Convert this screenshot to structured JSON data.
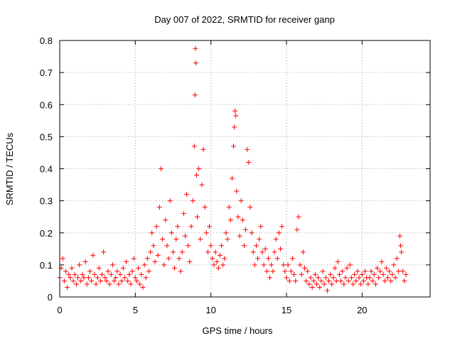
{
  "chart_data": {
    "type": "scatter",
    "title": "Day 007 of 2022, SRMTID for receiver ganp",
    "xlabel": "GPS time / hours",
    "ylabel": "SRMTID / TECUs",
    "xlim": [
      0,
      24.5
    ],
    "ylim": [
      0,
      0.8
    ],
    "x_ticks": [
      0,
      5,
      10,
      15,
      20
    ],
    "x_tick_labels": [
      "0",
      "5",
      "10",
      "15",
      "20"
    ],
    "y_ticks": [
      0,
      0.1,
      0.2,
      0.3,
      0.4,
      0.5,
      0.6,
      0.7,
      0.8
    ],
    "y_tick_labels": [
      "0",
      "0.1",
      "0.2",
      "0.3",
      "0.4",
      "0.5",
      "0.6",
      "0.7",
      "0.8"
    ],
    "grid": true,
    "marker": "+",
    "color": "#ff0000",
    "series": [
      {
        "name": "SRMTID",
        "points": [
          [
            0.0,
            0.06
          ],
          [
            0.1,
            0.09
          ],
          [
            0.2,
            0.12
          ],
          [
            0.3,
            0.05
          ],
          [
            0.4,
            0.08
          ],
          [
            0.5,
            0.03
          ],
          [
            0.6,
            0.07
          ],
          [
            0.7,
            0.06
          ],
          [
            0.8,
            0.09
          ],
          [
            0.9,
            0.05
          ],
          [
            1.0,
            0.07
          ],
          [
            1.1,
            0.04
          ],
          [
            1.2,
            0.06
          ],
          [
            1.3,
            0.1
          ],
          [
            1.4,
            0.05
          ],
          [
            1.5,
            0.07
          ],
          [
            1.6,
            0.06
          ],
          [
            1.7,
            0.11
          ],
          [
            1.8,
            0.04
          ],
          [
            1.9,
            0.06
          ],
          [
            2.0,
            0.08
          ],
          [
            2.1,
            0.05
          ],
          [
            2.2,
            0.13
          ],
          [
            2.3,
            0.07
          ],
          [
            2.4,
            0.04
          ],
          [
            2.5,
            0.06
          ],
          [
            2.6,
            0.09
          ],
          [
            2.7,
            0.05
          ],
          [
            2.8,
            0.07
          ],
          [
            2.9,
            0.14
          ],
          [
            3.0,
            0.06
          ],
          [
            3.1,
            0.05
          ],
          [
            3.2,
            0.08
          ],
          [
            3.3,
            0.04
          ],
          [
            3.4,
            0.07
          ],
          [
            3.5,
            0.1
          ],
          [
            3.6,
            0.05
          ],
          [
            3.7,
            0.06
          ],
          [
            3.8,
            0.08
          ],
          [
            3.9,
            0.04
          ],
          [
            4.0,
            0.07
          ],
          [
            4.1,
            0.05
          ],
          [
            4.2,
            0.09
          ],
          [
            4.3,
            0.06
          ],
          [
            4.4,
            0.11
          ],
          [
            4.5,
            0.05
          ],
          [
            4.6,
            0.07
          ],
          [
            4.7,
            0.04
          ],
          [
            4.8,
            0.08
          ],
          [
            4.9,
            0.12
          ],
          [
            5.0,
            0.06
          ],
          [
            5.1,
            0.05
          ],
          [
            5.2,
            0.09
          ],
          [
            5.3,
            0.04
          ],
          [
            5.4,
            0.07
          ],
          [
            5.5,
            0.03
          ],
          [
            5.6,
            0.1
          ],
          [
            5.7,
            0.06
          ],
          [
            5.8,
            0.12
          ],
          [
            5.9,
            0.08
          ],
          [
            6.0,
            0.14
          ],
          [
            6.1,
            0.2
          ],
          [
            6.2,
            0.16
          ],
          [
            6.3,
            0.11
          ],
          [
            6.4,
            0.22
          ],
          [
            6.5,
            0.13
          ],
          [
            6.6,
            0.28
          ],
          [
            6.7,
            0.4
          ],
          [
            6.8,
            0.18
          ],
          [
            6.9,
            0.1
          ],
          [
            7.0,
            0.24
          ],
          [
            7.1,
            0.16
          ],
          [
            7.2,
            0.12
          ],
          [
            7.3,
            0.3
          ],
          [
            7.4,
            0.2
          ],
          [
            7.5,
            0.14
          ],
          [
            7.6,
            0.09
          ],
          [
            7.7,
            0.18
          ],
          [
            7.8,
            0.22
          ],
          [
            7.9,
            0.12
          ],
          [
            8.0,
            0.08
          ],
          [
            8.1,
            0.14
          ],
          [
            8.2,
            0.26
          ],
          [
            8.3,
            0.19
          ],
          [
            8.4,
            0.32
          ],
          [
            8.5,
            0.16
          ],
          [
            8.6,
            0.11
          ],
          [
            8.7,
            0.22
          ],
          [
            8.8,
            0.3
          ],
          [
            8.9,
            0.47
          ],
          [
            8.95,
            0.63
          ],
          [
            9.0,
            0.73
          ],
          [
            8.98,
            0.775
          ],
          [
            9.05,
            0.38
          ],
          [
            9.1,
            0.25
          ],
          [
            9.2,
            0.4
          ],
          [
            9.3,
            0.18
          ],
          [
            9.4,
            0.35
          ],
          [
            9.5,
            0.46
          ],
          [
            9.6,
            0.28
          ],
          [
            9.7,
            0.2
          ],
          [
            9.8,
            0.14
          ],
          [
            9.9,
            0.22
          ],
          [
            10.0,
            0.16
          ],
          [
            10.1,
            0.12
          ],
          [
            10.2,
            0.1
          ],
          [
            10.3,
            0.14
          ],
          [
            10.4,
            0.11
          ],
          [
            10.5,
            0.09
          ],
          [
            10.6,
            0.13
          ],
          [
            10.7,
            0.16
          ],
          [
            10.8,
            0.1
          ],
          [
            10.9,
            0.12
          ],
          [
            11.0,
            0.2
          ],
          [
            11.1,
            0.18
          ],
          [
            11.2,
            0.28
          ],
          [
            11.3,
            0.24
          ],
          [
            11.4,
            0.37
          ],
          [
            11.5,
            0.47
          ],
          [
            11.55,
            0.53
          ],
          [
            11.6,
            0.58
          ],
          [
            11.65,
            0.565
          ],
          [
            11.7,
            0.33
          ],
          [
            11.8,
            0.25
          ],
          [
            11.9,
            0.19
          ],
          [
            12.0,
            0.3
          ],
          [
            12.1,
            0.24
          ],
          [
            12.2,
            0.16
          ],
          [
            12.3,
            0.21
          ],
          [
            12.4,
            0.46
          ],
          [
            12.5,
            0.42
          ],
          [
            12.6,
            0.28
          ],
          [
            12.7,
            0.2
          ],
          [
            12.8,
            0.14
          ],
          [
            12.9,
            0.1
          ],
          [
            13.0,
            0.16
          ],
          [
            13.1,
            0.12
          ],
          [
            13.2,
            0.18
          ],
          [
            13.3,
            0.22
          ],
          [
            13.4,
            0.14
          ],
          [
            13.5,
            0.1
          ],
          [
            13.6,
            0.15
          ],
          [
            13.7,
            0.08
          ],
          [
            13.8,
            0.12
          ],
          [
            13.9,
            0.06
          ],
          [
            14.0,
            0.1
          ],
          [
            14.1,
            0.08
          ],
          [
            14.2,
            0.14
          ],
          [
            14.3,
            0.18
          ],
          [
            14.4,
            0.12
          ],
          [
            14.5,
            0.2
          ],
          [
            14.6,
            0.15
          ],
          [
            14.7,
            0.22
          ],
          [
            14.8,
            0.1
          ],
          [
            14.9,
            0.08
          ],
          [
            15.0,
            0.06
          ],
          [
            15.1,
            0.1
          ],
          [
            15.2,
            0.05
          ],
          [
            15.3,
            0.08
          ],
          [
            15.4,
            0.12
          ],
          [
            15.5,
            0.07
          ],
          [
            15.6,
            0.05
          ],
          [
            15.7,
            0.21
          ],
          [
            15.8,
            0.25
          ],
          [
            15.9,
            0.1
          ],
          [
            16.0,
            0.07
          ],
          [
            16.1,
            0.14
          ],
          [
            16.2,
            0.09
          ],
          [
            16.3,
            0.05
          ],
          [
            16.4,
            0.08
          ],
          [
            16.5,
            0.04
          ],
          [
            16.6,
            0.06
          ],
          [
            16.7,
            0.03
          ],
          [
            16.8,
            0.05
          ],
          [
            16.9,
            0.07
          ],
          [
            17.0,
            0.04
          ],
          [
            17.1,
            0.06
          ],
          [
            17.2,
            0.03
          ],
          [
            17.3,
            0.05
          ],
          [
            17.4,
            0.08
          ],
          [
            17.5,
            0.04
          ],
          [
            17.6,
            0.06
          ],
          [
            17.7,
            0.02
          ],
          [
            17.8,
            0.05
          ],
          [
            17.9,
            0.07
          ],
          [
            18.0,
            0.04
          ],
          [
            18.1,
            0.06
          ],
          [
            18.2,
            0.09
          ],
          [
            18.3,
            0.05
          ],
          [
            18.4,
            0.11
          ],
          [
            18.5,
            0.07
          ],
          [
            18.6,
            0.05
          ],
          [
            18.7,
            0.08
          ],
          [
            18.8,
            0.04
          ],
          [
            18.9,
            0.06
          ],
          [
            19.0,
            0.09
          ],
          [
            19.1,
            0.05
          ],
          [
            19.2,
            0.1
          ],
          [
            19.3,
            0.06
          ],
          [
            19.4,
            0.04
          ],
          [
            19.5,
            0.07
          ],
          [
            19.6,
            0.05
          ],
          [
            19.7,
            0.08
          ],
          [
            19.8,
            0.06
          ],
          [
            19.9,
            0.04
          ],
          [
            20.0,
            0.07
          ],
          [
            20.1,
            0.05
          ],
          [
            20.2,
            0.08
          ],
          [
            20.3,
            0.06
          ],
          [
            20.4,
            0.04
          ],
          [
            20.5,
            0.06
          ],
          [
            20.6,
            0.08
          ],
          [
            20.7,
            0.05
          ],
          [
            20.8,
            0.07
          ],
          [
            20.9,
            0.04
          ],
          [
            21.0,
            0.09
          ],
          [
            21.1,
            0.06
          ],
          [
            21.2,
            0.08
          ],
          [
            21.3,
            0.11
          ],
          [
            21.4,
            0.07
          ],
          [
            21.5,
            0.05
          ],
          [
            21.6,
            0.09
          ],
          [
            21.7,
            0.06
          ],
          [
            21.8,
            0.08
          ],
          [
            21.9,
            0.05
          ],
          [
            22.0,
            0.07
          ],
          [
            22.1,
            0.1
          ],
          [
            22.2,
            0.06
          ],
          [
            22.3,
            0.12
          ],
          [
            22.4,
            0.08
          ],
          [
            22.5,
            0.19
          ],
          [
            22.55,
            0.16
          ],
          [
            22.6,
            0.14
          ],
          [
            22.7,
            0.08
          ],
          [
            22.8,
            0.05
          ],
          [
            22.9,
            0.07
          ]
        ]
      }
    ]
  }
}
